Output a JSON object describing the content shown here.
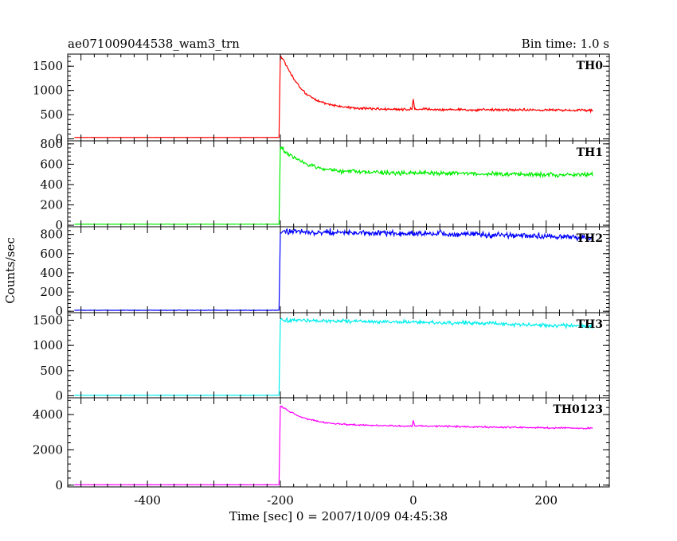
{
  "chart_data": {
    "type": "line",
    "title_left": "ae071009044538_wam3_trn",
    "title_right": "Bin time: 1.0 s",
    "xlabel": "Time [sec] 0 = 2007/10/09 04:45:38",
    "ylabel": "Counts/sec",
    "xlim": [
      -520,
      295
    ],
    "x_ticks": [
      -400,
      -200,
      0,
      200
    ],
    "grid": false,
    "panels": [
      {
        "name": "TH0",
        "color": "#ff0000",
        "ylim": [
          -40,
          1750
        ],
        "y_ticks": [
          0,
          500,
          1000,
          1500
        ],
        "x": [
          -510,
          -202,
          -200,
          -195,
          -190,
          -180,
          -170,
          -160,
          -150,
          -140,
          -130,
          -120,
          -110,
          -100,
          -80,
          -60,
          -40,
          -20,
          -2,
          0,
          2,
          20,
          40,
          60,
          80,
          100,
          120,
          140,
          160,
          180,
          200,
          220,
          240,
          270
        ],
        "y": [
          30,
          30,
          1700,
          1620,
          1480,
          1250,
          1060,
          920,
          830,
          770,
          720,
          690,
          670,
          650,
          630,
          620,
          615,
          610,
          610,
          820,
          615,
          610,
          605,
          600,
          600,
          600,
          600,
          598,
          598,
          596,
          595,
          595,
          592,
          590
        ],
        "noise": 25
      },
      {
        "name": "TH1",
        "color": "#00ee00",
        "ylim": [
          -15,
          830
        ],
        "y_ticks": [
          0,
          200,
          400,
          600,
          800
        ],
        "x": [
          -510,
          -202,
          -200,
          -195,
          -190,
          -180,
          -170,
          -160,
          -150,
          -140,
          -130,
          -120,
          -110,
          -100,
          -80,
          -60,
          -40,
          -20,
          0,
          20,
          40,
          60,
          80,
          100,
          120,
          140,
          160,
          180,
          200,
          220,
          240,
          270
        ],
        "y": [
          10,
          10,
          780,
          740,
          710,
          670,
          630,
          600,
          580,
          560,
          550,
          540,
          535,
          530,
          525,
          520,
          518,
          515,
          515,
          512,
          510,
          510,
          508,
          506,
          505,
          503,
          502,
          500,
          500,
          498,
          496,
          495
        ],
        "noise": 20
      },
      {
        "name": "TH2",
        "color": "#0000ff",
        "ylim": [
          -15,
          880
        ],
        "y_ticks": [
          0,
          200,
          400,
          600,
          800
        ],
        "x": [
          -510,
          -202,
          -200,
          -190,
          -150,
          -100,
          -50,
          0,
          50,
          100,
          150,
          200,
          240,
          270
        ],
        "y": [
          10,
          10,
          830,
          830,
          825,
          820,
          815,
          810,
          805,
          800,
          790,
          780,
          775,
          770
        ],
        "noise": 30
      },
      {
        "name": "TH3",
        "color": "#00eeee",
        "ylim": [
          -40,
          1650
        ],
        "y_ticks": [
          0,
          500,
          1000,
          1500
        ],
        "x": [
          -510,
          -202,
          -200,
          -190,
          -150,
          -100,
          -50,
          0,
          50,
          100,
          150,
          200,
          240,
          270
        ],
        "y": [
          10,
          10,
          1500,
          1500,
          1490,
          1480,
          1470,
          1460,
          1450,
          1440,
          1420,
          1400,
          1390,
          1380
        ],
        "noise": 35
      },
      {
        "name": "TH0123",
        "color": "#ff00ff",
        "ylim": [
          -100,
          4950
        ],
        "y_ticks": [
          0,
          2000,
          4000
        ],
        "x": [
          -510,
          -202,
          -200,
          -195,
          -190,
          -180,
          -170,
          -160,
          -150,
          -140,
          -130,
          -120,
          -100,
          -80,
          -60,
          -40,
          -20,
          -2,
          0,
          2,
          20,
          40,
          60,
          80,
          100,
          120,
          140,
          160,
          180,
          200,
          220,
          240,
          270
        ],
        "y": [
          20,
          20,
          4500,
          4380,
          4250,
          4050,
          3880,
          3760,
          3660,
          3590,
          3530,
          3490,
          3440,
          3410,
          3390,
          3370,
          3360,
          3350,
          3700,
          3350,
          3340,
          3330,
          3320,
          3310,
          3300,
          3290,
          3280,
          3270,
          3260,
          3250,
          3240,
          3230,
          3220
        ],
        "noise": 45
      }
    ]
  }
}
